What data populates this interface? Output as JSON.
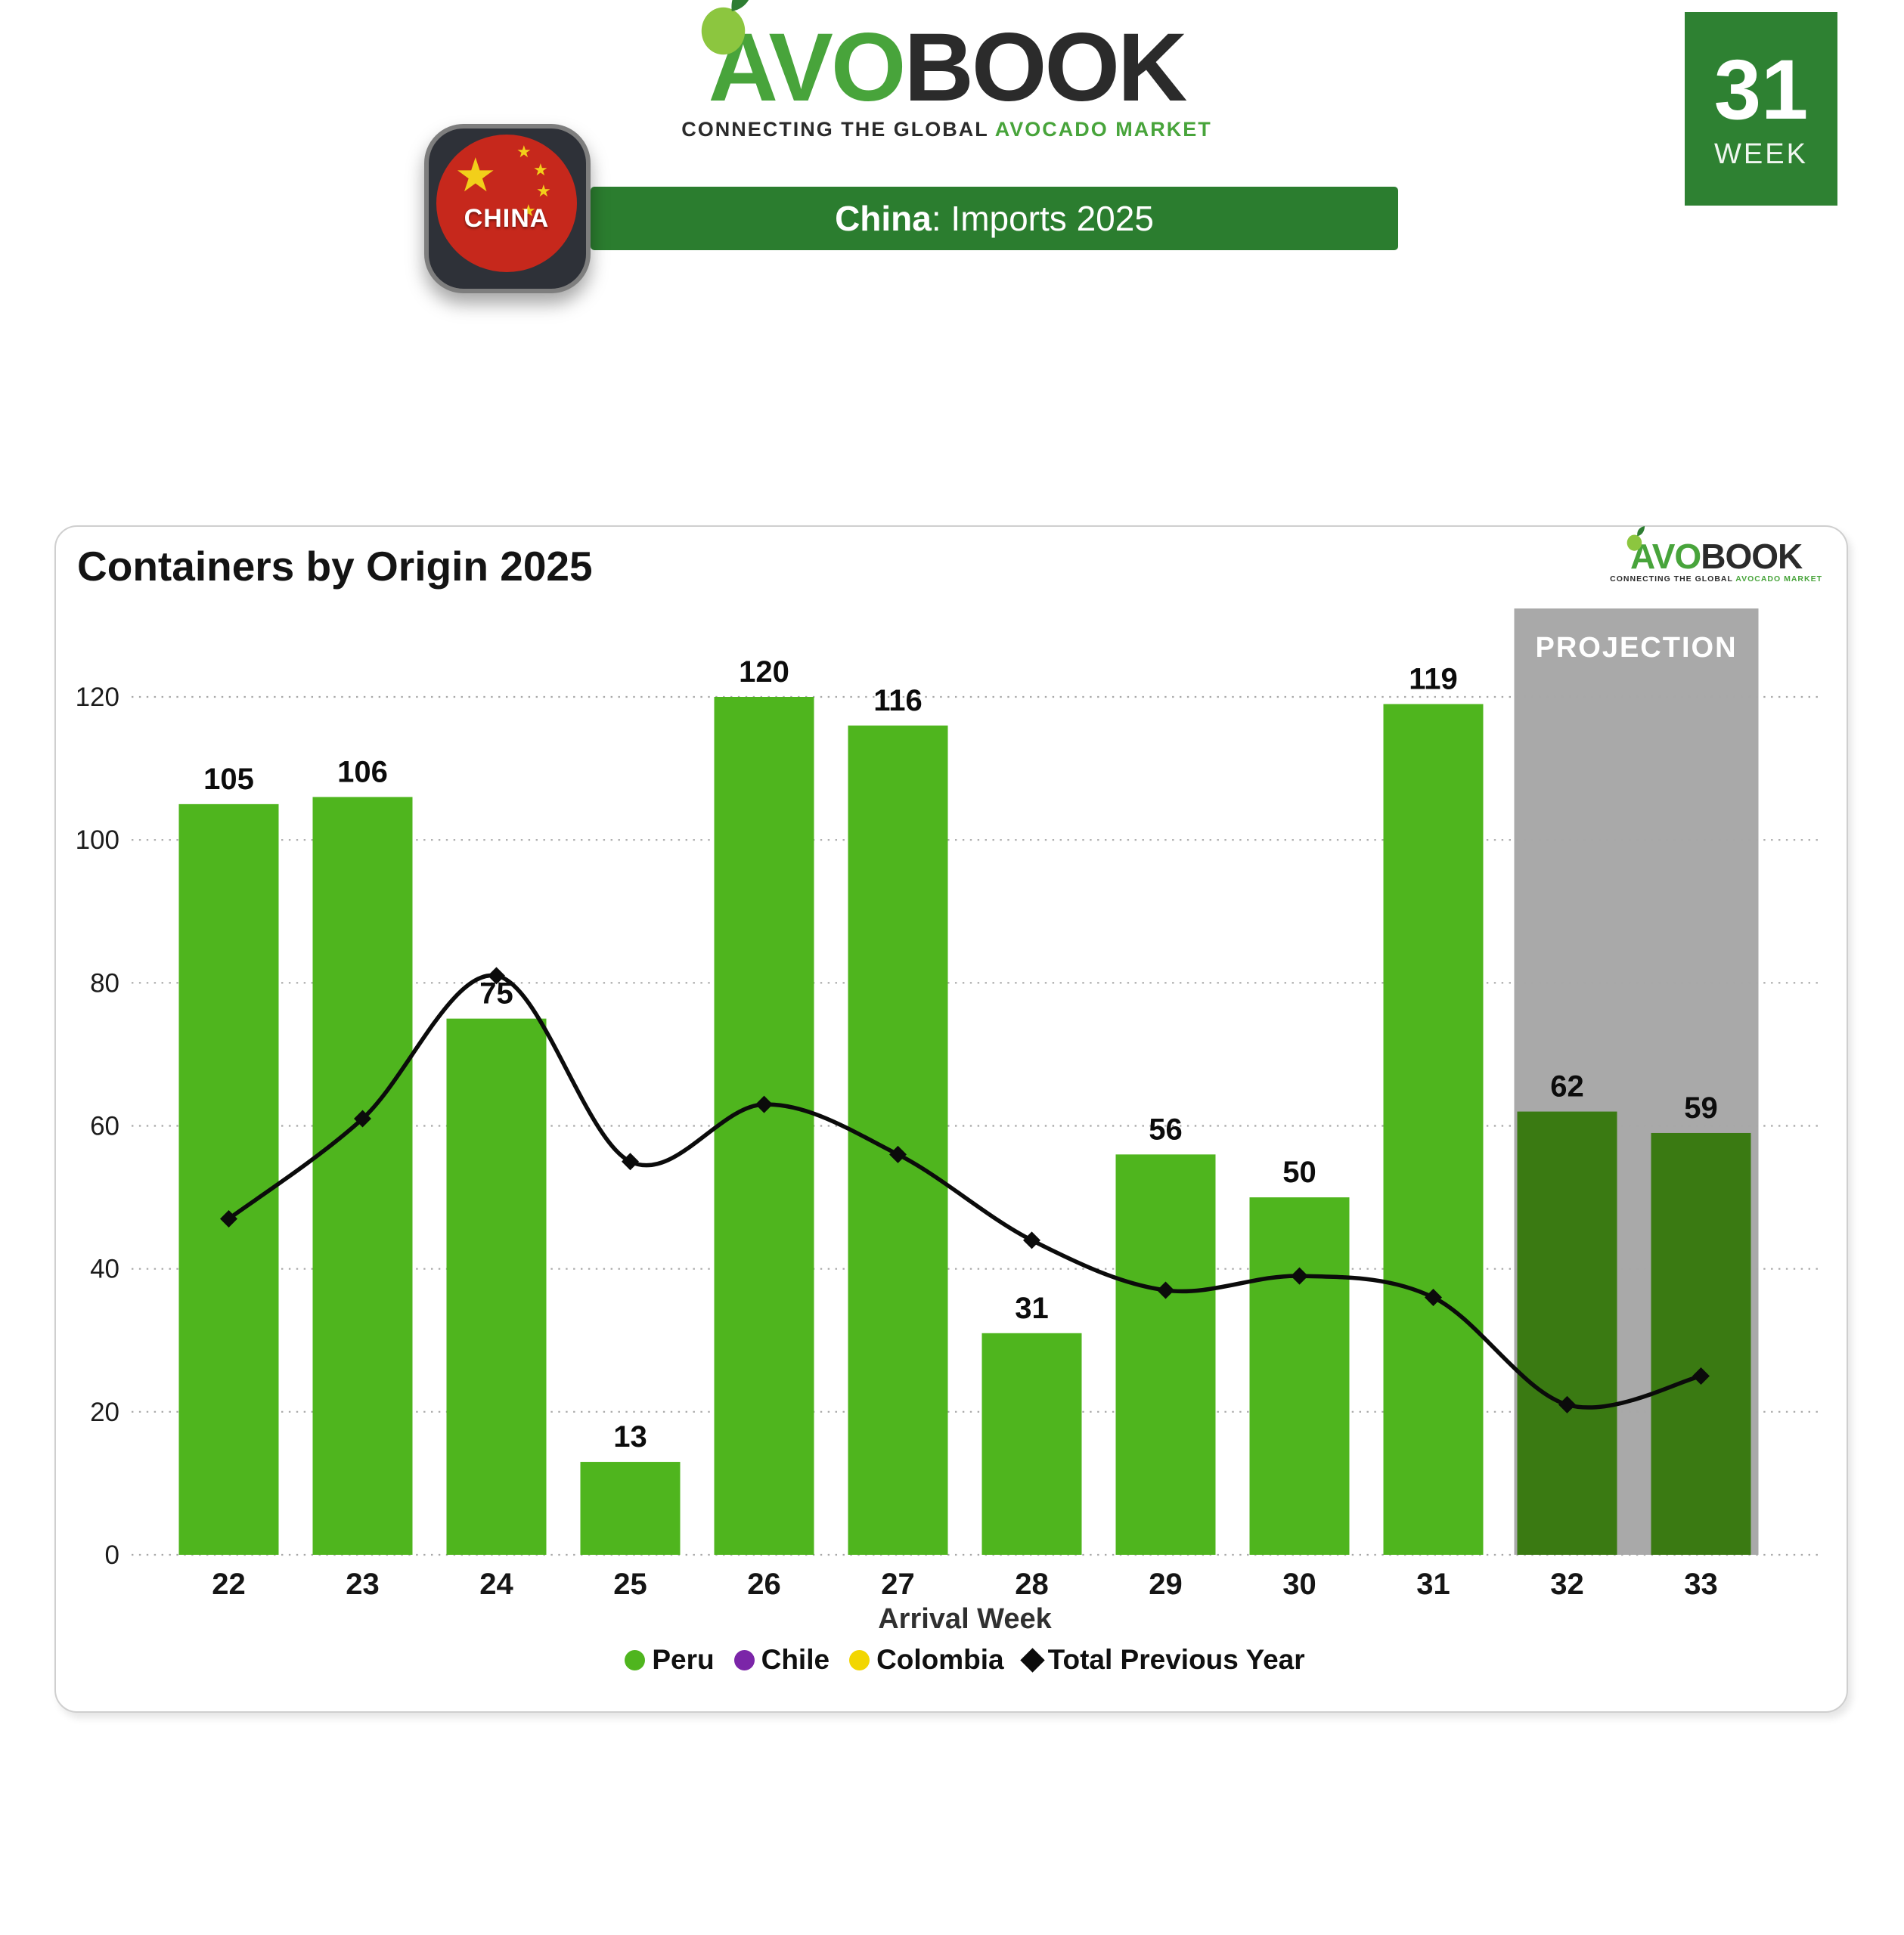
{
  "brand": {
    "avo": "AVO",
    "book": "BOOK",
    "tagline_dark": "CONNECTING THE GLOBAL",
    "tagline_green": "AVOCADO MARKET"
  },
  "header": {
    "flag_label": "CHINA",
    "banner_bold": "China",
    "banner_rest": ": Imports 2025",
    "week_number": "31",
    "week_label": "WEEK"
  },
  "colors": {
    "bar_green": "#4FB51E",
    "bar_projection_green": "#3A7A12",
    "projection_gray": "#A9A9A9",
    "banner_green": "#2B7D2F",
    "week_box_green": "#2E8132",
    "line_black": "#0b0b0b",
    "chile_purple": "#7B25A8",
    "colombia_yellow": "#F2D600"
  },
  "chart_data": {
    "type": "bar",
    "title": "Containers by Origin 2025",
    "xlabel": "Arrival Week",
    "ylabel": "",
    "categories": [
      22,
      23,
      24,
      25,
      26,
      27,
      28,
      29,
      30,
      31,
      32,
      33
    ],
    "series": [
      {
        "name": "Peru",
        "type": "bar",
        "color": "#4FB51E",
        "projection_color": "#3A7A12",
        "values": [
          105,
          106,
          75,
          13,
          120,
          116,
          31,
          56,
          50,
          119,
          62,
          59
        ]
      },
      {
        "name": "Total Previous Year",
        "type": "line",
        "color": "#0b0b0b",
        "marker": "diamond",
        "values": [
          47,
          61,
          81,
          55,
          63,
          56,
          44,
          37,
          39,
          36,
          21,
          25
        ]
      }
    ],
    "legend": [
      {
        "label": "Peru",
        "marker": "circle",
        "color": "#4FB51E"
      },
      {
        "label": "Chile",
        "marker": "circle",
        "color": "#7B25A8"
      },
      {
        "label": "Colombia",
        "marker": "circle",
        "color": "#F2D600"
      },
      {
        "label": "Total Previous Year",
        "marker": "diamond",
        "color": "#0b0b0b"
      }
    ],
    "projection": {
      "label": "PROJECTION",
      "weeks": [
        32,
        33
      ],
      "color": "#A9A9A9",
      "text_color": "#FFFFFF"
    },
    "ylim": [
      0,
      120
    ],
    "yticks": [
      0,
      20,
      40,
      60,
      80,
      100,
      120
    ],
    "grid": "horizontal-dotted",
    "legend_position": "bottom"
  }
}
